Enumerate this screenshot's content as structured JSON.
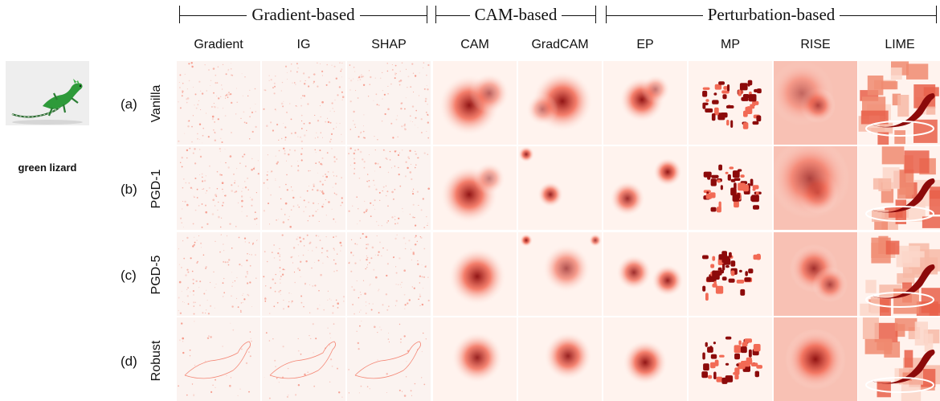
{
  "groups": [
    {
      "label": "Gradient-based"
    },
    {
      "label": "CAM-based"
    },
    {
      "label": "Perturbation-based"
    }
  ],
  "methods": [
    "Gradient",
    "IG",
    "SHAP",
    "CAM",
    "GradCAM",
    "EP",
    "MP",
    "RISE",
    "LIME"
  ],
  "rows": [
    {
      "letter": "(a)",
      "name": "Vanilla"
    },
    {
      "letter": "(b)",
      "name": "PGD-1"
    },
    {
      "letter": "(c)",
      "name": "PGD-5"
    },
    {
      "letter": "(d)",
      "name": "Robust"
    }
  ],
  "input": {
    "label": "green lizard"
  },
  "colors": {
    "heat_low": "#fff3ee",
    "heat_mid": "#f26a55",
    "heat_high": "#8c0a0a",
    "lizard": "#2e9a3a"
  }
}
